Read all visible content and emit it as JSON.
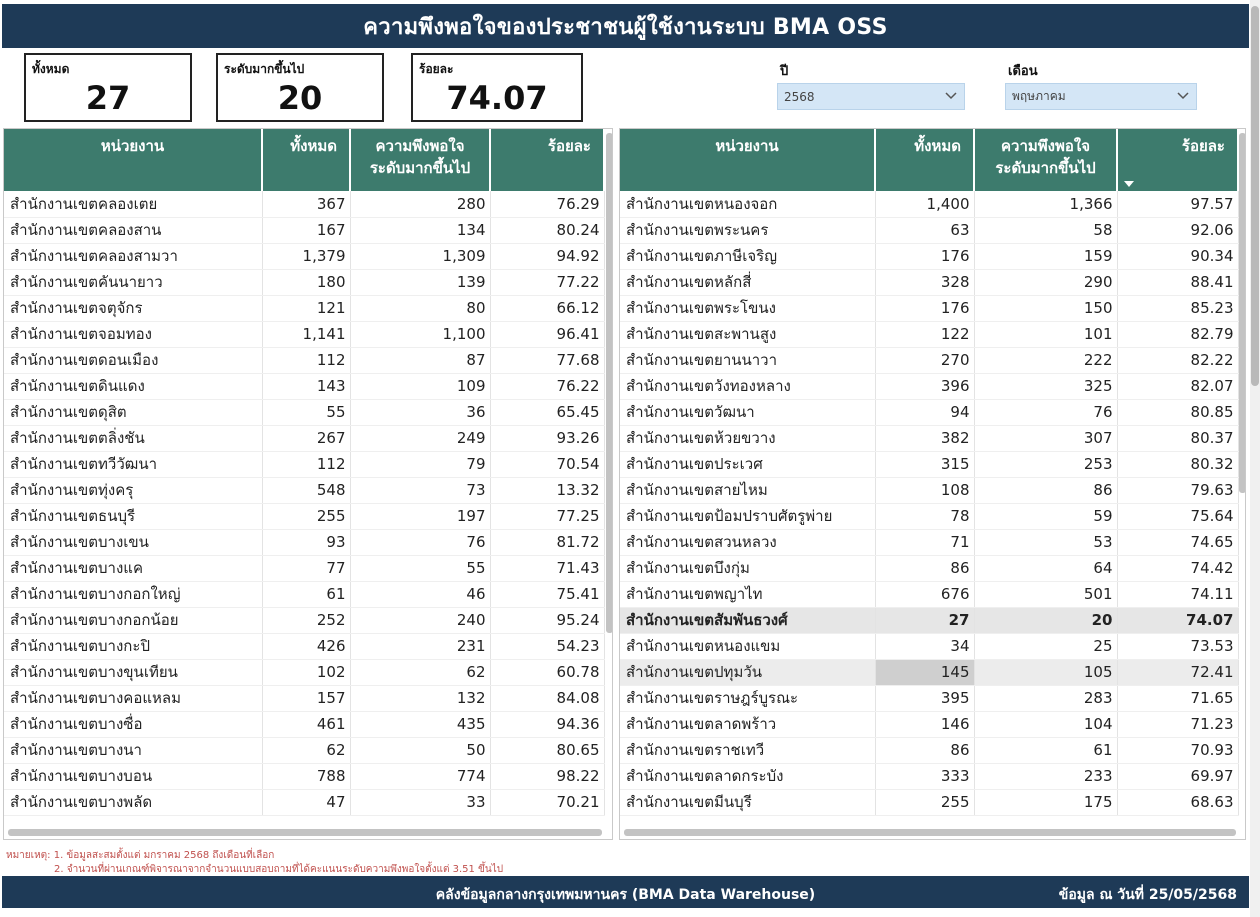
{
  "title": "ความพึงพอใจของประชาชนผู้ใช้งานระบบ BMA OSS",
  "kpis": [
    {
      "label": "ทั้งหมด",
      "value": "27"
    },
    {
      "label": "ระดับมากขึ้นไป",
      "value": "20"
    },
    {
      "label": "ร้อยละ",
      "value": "74.07"
    }
  ],
  "filters": {
    "year": {
      "label": "ปี",
      "value": "2568"
    },
    "month": {
      "label": "เดือน",
      "value": "พฤษภาคม"
    }
  },
  "columns": {
    "unit": "หน่วยงาน",
    "total": "ทั้งหมด",
    "satisfied_l1": "ความพึงพอใจ",
    "satisfied_l2": "ระดับมากขึ้นไป",
    "percent": "ร้อยละ"
  },
  "left_table": [
    [
      "สำนักงานเขตคลองเตย",
      "367",
      "280",
      "76.29"
    ],
    [
      "สำนักงานเขตคลองสาน",
      "167",
      "134",
      "80.24"
    ],
    [
      "สำนักงานเขตคลองสามวา",
      "1,379",
      "1,309",
      "94.92"
    ],
    [
      "สำนักงานเขตคันนายาว",
      "180",
      "139",
      "77.22"
    ],
    [
      "สำนักงานเขตจตุจักร",
      "121",
      "80",
      "66.12"
    ],
    [
      "สำนักงานเขตจอมทอง",
      "1,141",
      "1,100",
      "96.41"
    ],
    [
      "สำนักงานเขตดอนเมือง",
      "112",
      "87",
      "77.68"
    ],
    [
      "สำนักงานเขตดินแดง",
      "143",
      "109",
      "76.22"
    ],
    [
      "สำนักงานเขตดุสิต",
      "55",
      "36",
      "65.45"
    ],
    [
      "สำนักงานเขตตลิ่งชัน",
      "267",
      "249",
      "93.26"
    ],
    [
      "สำนักงานเขตทวีวัฒนา",
      "112",
      "79",
      "70.54"
    ],
    [
      "สำนักงานเขตทุ่งครุ",
      "548",
      "73",
      "13.32"
    ],
    [
      "สำนักงานเขตธนบุรี",
      "255",
      "197",
      "77.25"
    ],
    [
      "สำนักงานเขตบางเขน",
      "93",
      "76",
      "81.72"
    ],
    [
      "สำนักงานเขตบางแค",
      "77",
      "55",
      "71.43"
    ],
    [
      "สำนักงานเขตบางกอกใหญ่",
      "61",
      "46",
      "75.41"
    ],
    [
      "สำนักงานเขตบางกอกน้อย",
      "252",
      "240",
      "95.24"
    ],
    [
      "สำนักงานเขตบางกะปิ",
      "426",
      "231",
      "54.23"
    ],
    [
      "สำนักงานเขตบางขุนเทียน",
      "102",
      "62",
      "60.78"
    ],
    [
      "สำนักงานเขตบางคอแหลม",
      "157",
      "132",
      "84.08"
    ],
    [
      "สำนักงานเขตบางซื่อ",
      "461",
      "435",
      "94.36"
    ],
    [
      "สำนักงานเขตบางนา",
      "62",
      "50",
      "80.65"
    ],
    [
      "สำนักงานเขตบางบอน",
      "788",
      "774",
      "98.22"
    ],
    [
      "สำนักงานเขตบางพลัด",
      "47",
      "33",
      "70.21"
    ]
  ],
  "right_table": [
    [
      "สำนักงานเขตหนองจอก",
      "1,400",
      "1,366",
      "97.57"
    ],
    [
      "สำนักงานเขตพระนคร",
      "63",
      "58",
      "92.06"
    ],
    [
      "สำนักงานเขตภาษีเจริญ",
      "176",
      "159",
      "90.34"
    ],
    [
      "สำนักงานเขตหลักสี่",
      "328",
      "290",
      "88.41"
    ],
    [
      "สำนักงานเขตพระโขนง",
      "176",
      "150",
      "85.23"
    ],
    [
      "สำนักงานเขตสะพานสูง",
      "122",
      "101",
      "82.79"
    ],
    [
      "สำนักงานเขตยานนาวา",
      "270",
      "222",
      "82.22"
    ],
    [
      "สำนักงานเขตวังทองหลาง",
      "396",
      "325",
      "82.07"
    ],
    [
      "สำนักงานเขตวัฒนา",
      "94",
      "76",
      "80.85"
    ],
    [
      "สำนักงานเขตห้วยขวาง",
      "382",
      "307",
      "80.37"
    ],
    [
      "สำนักงานเขตประเวศ",
      "315",
      "253",
      "80.32"
    ],
    [
      "สำนักงานเขตสายไหม",
      "108",
      "86",
      "79.63"
    ],
    [
      "สำนักงานเขตป้อมปราบศัตรูพ่าย",
      "78",
      "59",
      "75.64"
    ],
    [
      "สำนักงานเขตสวนหลวง",
      "71",
      "53",
      "74.65"
    ],
    [
      "สำนักงานเขตบึงกุ่ม",
      "86",
      "64",
      "74.42"
    ],
    [
      "สำนักงานเขตพญาไท",
      "676",
      "501",
      "74.11"
    ],
    [
      "สำนักงานเขตสัมพันธวงศ์",
      "27",
      "20",
      "74.07"
    ],
    [
      "สำนักงานเขตหนองแขม",
      "34",
      "25",
      "73.53"
    ],
    [
      "สำนักงานเขตปทุมวัน",
      "145",
      "105",
      "72.41"
    ],
    [
      "สำนักงานเขตราษฎร์บูรณะ",
      "395",
      "283",
      "71.65"
    ],
    [
      "สำนักงานเขตลาดพร้าว",
      "146",
      "104",
      "71.23"
    ],
    [
      "สำนักงานเขตราชเทวี",
      "86",
      "61",
      "70.93"
    ],
    [
      "สำนักงานเขตลาดกระบัง",
      "333",
      "233",
      "69.97"
    ],
    [
      "สำนักงานเขตมีนบุรี",
      "255",
      "175",
      "68.63"
    ]
  ],
  "right_selected_index": 16,
  "right_hover_index": 18,
  "notes": {
    "line1": "หมายเหตุ: 1. ข้อมูลสะสมตั้งแต่ มกราคม 2568 ถึงเดือนที่เลือก",
    "line2": "2. จำนวนที่ผ่านเกณฑ์พิจารณาจากจำนวนแบบสอบถามที่ได้คะแนนระดับความพึงพอใจตั้งแต่ 3.51 ขึ้นไป"
  },
  "footer": {
    "source": "คลังข้อมูลกลางกรุงเทพมหานคร (BMA Data Warehouse)",
    "date_label": "ข้อมูล ณ วันที่ 25/05/2568"
  }
}
